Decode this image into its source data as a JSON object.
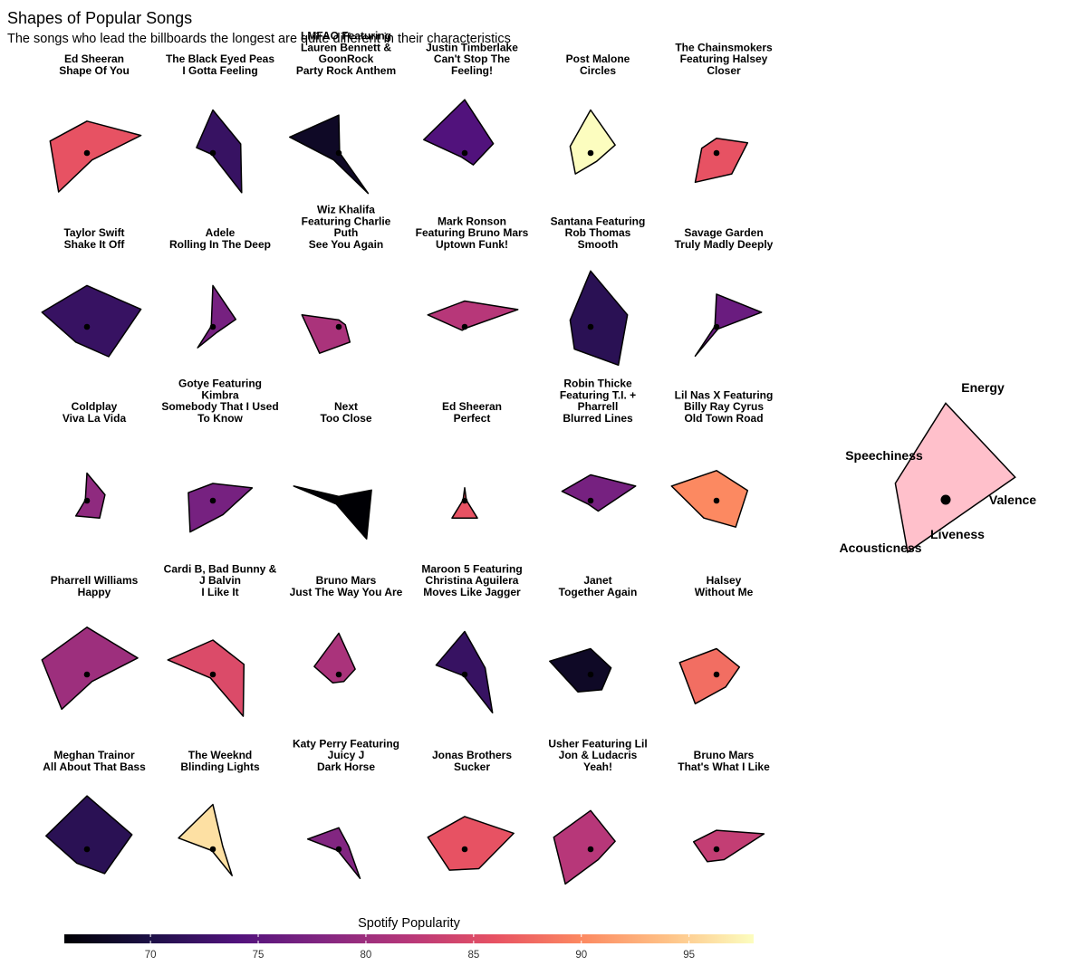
{
  "title": "Shapes of Popular Songs",
  "subtitle": "The songs who lead the billboards the longest are quite different in their characteristics",
  "chart_data": {
    "type": "radar-polygon-small-multiples",
    "axes": [
      "Energy",
      "Valence",
      "Liveness",
      "Acousticness",
      "Speechiness"
    ],
    "fill_scale": "magma",
    "colorbar": {
      "title": "Spotify Popularity",
      "range": [
        66,
        98
      ],
      "ticks": [
        70,
        75,
        80,
        85,
        90,
        95
      ],
      "colors": [
        "#000004",
        "#1d1147",
        "#51127c",
        "#822681",
        "#b73779",
        "#e75263",
        "#fc8961",
        "#fec287",
        "#fcfdbf"
      ]
    },
    "legend_example": {
      "color": "#ffc0cb",
      "values": [
        0.82,
        0.62,
        0.18,
        0.55,
        0.45
      ]
    },
    "songs": [
      {
        "lines": [
          "Ed Sheeran",
          "Shape Of You"
        ],
        "popularity": 86,
        "values": [
          0.37,
          0.66,
          0.1,
          0.56,
          0.45
        ]
      },
      {
        "lines": [
          "The Black Eyed Peas",
          "I Gotta Feeling"
        ],
        "popularity": 72,
        "values": [
          0.5,
          0.34,
          0.57,
          0.02,
          0.2
        ]
      },
      {
        "lines": [
          "LMFAO Featuring",
          "Lauren Bennett &",
          "GoonRock",
          "Party Rock Anthem"
        ],
        "popularity": 68,
        "values": [
          0.44,
          0.01,
          0.58,
          0.1,
          0.6
        ]
      },
      {
        "lines": [
          "Justin Timberlake",
          "Can't Stop The",
          "Feeling!"
        ],
        "popularity": 74,
        "values": [
          0.62,
          0.35,
          0.17,
          0.06,
          0.5
        ]
      },
      {
        "lines": [
          "Post Malone",
          "Circles"
        ],
        "popularity": 98,
        "values": [
          0.5,
          0.3,
          0.12,
          0.3,
          0.25
        ]
      },
      {
        "lines": [
          "The Chainsmokers",
          "Featuring Halsey",
          "Closer"
        ],
        "popularity": 86,
        "values": [
          0.17,
          0.38,
          0.3,
          0.42,
          0.18
        ]
      },
      {
        "lines": [
          "Taylor Swift",
          "Shake It Off"
        ],
        "popularity": 72,
        "values": [
          0.48,
          0.66,
          0.43,
          0.22,
          0.55
        ]
      },
      {
        "lines": [
          "Adele",
          "Rolling In The Deep"
        ],
        "popularity": 77,
        "values": [
          0.48,
          0.28,
          0.08,
          0.3,
          0.02
        ]
      },
      {
        "lines": [
          "Wiz Khalifa",
          "Featuring Charlie",
          "Puth",
          "See You Again"
        ],
        "popularity": 81,
        "values": [
          0.08,
          0.08,
          0.22,
          0.38,
          0.45
        ]
      },
      {
        "lines": [
          "Mark Ronson",
          "Featuring Bruno Mars",
          "Uptown Funk!"
        ],
        "popularity": 82,
        "values": [
          0.3,
          0.65,
          0.02,
          0.05,
          0.45
        ]
      },
      {
        "lines": [
          "Santana Featuring",
          "Rob Thomas",
          "Smooth"
        ],
        "popularity": 71,
        "values": [
          0.65,
          0.45,
          0.55,
          0.32,
          0.25
        ]
      },
      {
        "lines": [
          "Savage Garden",
          "Truly Madly Deeply"
        ],
        "popularity": 76,
        "values": [
          0.38,
          0.55,
          0.03,
          0.42,
          0.02
        ]
      },
      {
        "lines": [
          "Coldplay",
          "Viva La Vida"
        ],
        "popularity": 79,
        "values": [
          0.32,
          0.22,
          0.25,
          0.22,
          0.02
        ]
      },
      {
        "lines": [
          "Gotye Featuring",
          "Kimbra",
          "Somebody That I Used",
          "To Know"
        ],
        "popularity": 77,
        "values": [
          0.2,
          0.48,
          0.2,
          0.45,
          0.3
        ]
      },
      {
        "lines": [
          "Next",
          "Too Close"
        ],
        "popularity": 66,
        "values": [
          0.05,
          0.4,
          0.55,
          0.05,
          0.55
        ]
      },
      {
        "lines": [
          "Ed Sheeran",
          "Perfect"
        ],
        "popularity": 86,
        "values": [
          0.15,
          0.02,
          0.25,
          0.25,
          0.02
        ]
      },
      {
        "lines": [
          "Robin Thicke",
          "Featuring T.I. +",
          "Pharrell",
          "Blurred Lines"
        ],
        "popularity": 77,
        "values": [
          0.3,
          0.55,
          0.15,
          0.05,
          0.35
        ]
      },
      {
        "lines": [
          "Lil Nas X Featuring",
          "Billy Ray Cyrus",
          "Old Town Road"
        ],
        "popularity": 90,
        "values": [
          0.35,
          0.38,
          0.38,
          0.25,
          0.55
        ]
      },
      {
        "lines": [
          "Pharrell Williams",
          "Happy"
        ],
        "popularity": 80,
        "values": [
          0.55,
          0.62,
          0.1,
          0.5,
          0.55
        ]
      },
      {
        "lines": [
          "Cardi B, Bad Bunny &",
          "J Balvin",
          "I Like It"
        ],
        "popularity": 85,
        "values": [
          0.4,
          0.38,
          0.6,
          0.05,
          0.55
        ]
      },
      {
        "lines": [
          "Bruno Mars",
          "Just The Way You Are"
        ],
        "popularity": 81,
        "values": [
          0.48,
          0.2,
          0.1,
          0.12,
          0.3
        ]
      },
      {
        "lines": [
          "Maroon 5 Featuring",
          "Christina Aguilera",
          "Moves Like Jagger"
        ],
        "popularity": 72,
        "values": [
          0.5,
          0.25,
          0.55,
          0.02,
          0.35
        ]
      },
      {
        "lines": [
          "Janet",
          "Together Again"
        ],
        "popularity": 68,
        "values": [
          0.3,
          0.25,
          0.22,
          0.25,
          0.5
        ]
      },
      {
        "lines": [
          "Halsey",
          "Without Me"
        ],
        "popularity": 88,
        "values": [
          0.3,
          0.28,
          0.18,
          0.42,
          0.45
        ]
      },
      {
        "lines": [
          "Meghan Trainor",
          "All About That Bass"
        ],
        "popularity": 71,
        "values": [
          0.62,
          0.55,
          0.35,
          0.2,
          0.5
        ]
      },
      {
        "lines": [
          "The Weeknd",
          "Blinding Lights"
        ],
        "popularity": 96,
        "values": [
          0.52,
          0.12,
          0.38,
          0.02,
          0.42
        ]
      },
      {
        "lines": [
          "Katy Perry Featuring",
          "Juicy J",
          "Dark Horse"
        ],
        "popularity": 78,
        "values": [
          0.25,
          0.12,
          0.42,
          0.02,
          0.38
        ]
      },
      {
        "lines": [
          "Jonas Brothers",
          "Sucker"
        ],
        "popularity": 86,
        "values": [
          0.38,
          0.6,
          0.28,
          0.3,
          0.45
        ]
      },
      {
        "lines": [
          "Usher Featuring Lil",
          "Jon & Ludacris",
          "Yeah!"
        ],
        "popularity": 82,
        "values": [
          0.45,
          0.3,
          0.15,
          0.5,
          0.45
        ]
      },
      {
        "lines": [
          "Bruno Mars",
          "That's What I Like"
        ],
        "popularity": 83,
        "values": [
          0.22,
          0.58,
          0.15,
          0.18,
          0.28
        ]
      }
    ]
  }
}
